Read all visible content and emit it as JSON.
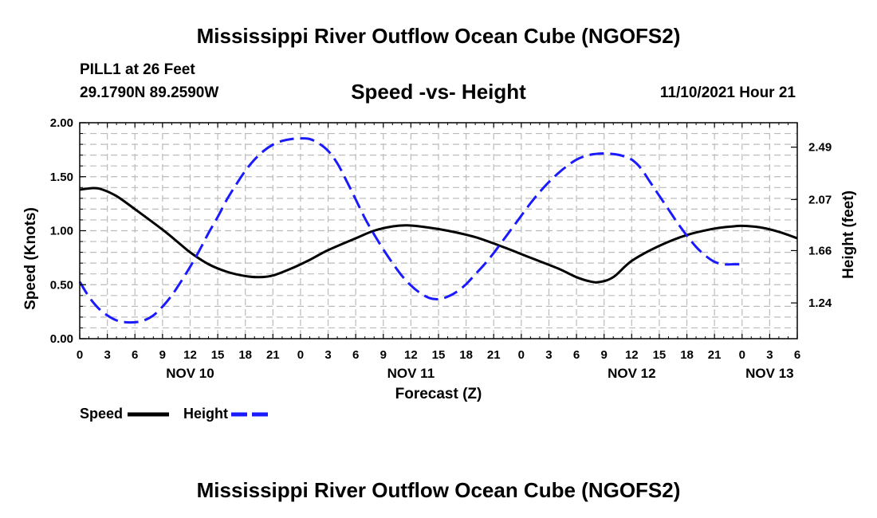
{
  "header": {
    "title": "Mississippi River Outflow Ocean Cube (NGOFS2)",
    "station": "PILL1 at 26 Feet",
    "coords": "29.1790N  89.2590W",
    "datetime": "11/10/2021 Hour 21",
    "footer_title": "Mississippi River Outflow Ocean Cube (NGOFS2)"
  },
  "legend": {
    "speed_label": "Speed",
    "height_label": "Height"
  },
  "colors": {
    "speed": "#000000",
    "height": "#1a1aff",
    "grid": "#bbbbbb"
  },
  "chart_data": {
    "type": "line",
    "title": "Speed -vs- Height",
    "xlabel": "Forecast (Z)",
    "ylabel": "Speed (Knots)",
    "y2label": "Height (feet)",
    "x_range_hours": [
      0,
      78
    ],
    "ylim": [
      0,
      2.0
    ],
    "y2lim": [
      0.953,
      2.686
    ],
    "x_ticks": [
      {
        "h": 0,
        "label": "0"
      },
      {
        "h": 3,
        "label": "3"
      },
      {
        "h": 6,
        "label": "6"
      },
      {
        "h": 9,
        "label": "9"
      },
      {
        "h": 12,
        "label": "12"
      },
      {
        "h": 15,
        "label": "15"
      },
      {
        "h": 18,
        "label": "18"
      },
      {
        "h": 21,
        "label": "21"
      },
      {
        "h": 24,
        "label": "0"
      },
      {
        "h": 27,
        "label": "3"
      },
      {
        "h": 30,
        "label": "6"
      },
      {
        "h": 33,
        "label": "9"
      },
      {
        "h": 36,
        "label": "12"
      },
      {
        "h": 39,
        "label": "15"
      },
      {
        "h": 42,
        "label": "18"
      },
      {
        "h": 45,
        "label": "21"
      },
      {
        "h": 48,
        "label": "0"
      },
      {
        "h": 51,
        "label": "3"
      },
      {
        "h": 54,
        "label": "6"
      },
      {
        "h": 57,
        "label": "9"
      },
      {
        "h": 60,
        "label": "12"
      },
      {
        "h": 63,
        "label": "15"
      },
      {
        "h": 66,
        "label": "18"
      },
      {
        "h": 69,
        "label": "21"
      },
      {
        "h": 72,
        "label": "0"
      },
      {
        "h": 75,
        "label": "3"
      },
      {
        "h": 78,
        "label": "6"
      }
    ],
    "day_labels": [
      {
        "h": 12,
        "label": "NOV 10"
      },
      {
        "h": 36,
        "label": "NOV 11"
      },
      {
        "h": 60,
        "label": "NOV 12"
      },
      {
        "h": 75,
        "label": "NOV 13"
      }
    ],
    "y_ticks": [
      {
        "v": 0.0,
        "label": "0.00"
      },
      {
        "v": 0.5,
        "label": "0.50"
      },
      {
        "v": 1.0,
        "label": "1.00"
      },
      {
        "v": 1.5,
        "label": "1.50"
      },
      {
        "v": 2.0,
        "label": "2.00"
      }
    ],
    "y2_ticks": [
      {
        "v": 1.24,
        "label": "1.24"
      },
      {
        "v": 1.66,
        "label": "1.66"
      },
      {
        "v": 2.07,
        "label": "2.07"
      },
      {
        "v": 2.49,
        "label": "2.49"
      }
    ],
    "series": [
      {
        "name": "Speed",
        "axis": "left",
        "style": "solid",
        "points": [
          [
            0,
            1.38
          ],
          [
            1.5,
            1.395
          ],
          [
            2.5,
            1.38
          ],
          [
            4,
            1.32
          ],
          [
            6,
            1.2
          ],
          [
            9,
            1.01
          ],
          [
            11,
            0.87
          ],
          [
            12,
            0.8
          ],
          [
            14,
            0.69
          ],
          [
            16,
            0.62
          ],
          [
            18,
            0.58
          ],
          [
            19.5,
            0.57
          ],
          [
            21,
            0.585
          ],
          [
            23,
            0.65
          ],
          [
            25,
            0.73
          ],
          [
            27,
            0.82
          ],
          [
            30,
            0.93
          ],
          [
            32,
            1.0
          ],
          [
            34,
            1.04
          ],
          [
            35.5,
            1.05
          ],
          [
            37,
            1.04
          ],
          [
            40,
            1.0
          ],
          [
            43,
            0.94
          ],
          [
            46,
            0.85
          ],
          [
            49,
            0.75
          ],
          [
            52,
            0.65
          ],
          [
            54,
            0.57
          ],
          [
            55.5,
            0.53
          ],
          [
            56.5,
            0.525
          ],
          [
            58,
            0.57
          ],
          [
            60,
            0.72
          ],
          [
            63,
            0.86
          ],
          [
            66,
            0.96
          ],
          [
            69,
            1.02
          ],
          [
            71,
            1.04
          ],
          [
            72,
            1.045
          ],
          [
            74,
            1.03
          ],
          [
            76,
            0.99
          ],
          [
            78,
            0.93
          ]
        ]
      },
      {
        "name": "Height",
        "axis": "right",
        "style": "dashed",
        "points": [
          [
            0,
            1.41
          ],
          [
            1,
            1.29
          ],
          [
            2,
            1.2
          ],
          [
            3,
            1.14
          ],
          [
            4,
            1.1
          ],
          [
            5,
            1.085
          ],
          [
            6,
            1.085
          ],
          [
            7,
            1.1
          ],
          [
            8,
            1.14
          ],
          [
            9,
            1.21
          ],
          [
            10,
            1.3
          ],
          [
            11,
            1.41
          ],
          [
            12,
            1.53
          ],
          [
            13,
            1.66
          ],
          [
            14,
            1.8
          ],
          [
            15,
            1.93
          ],
          [
            16,
            2.07
          ],
          [
            17,
            2.19
          ],
          [
            18,
            2.3
          ],
          [
            19,
            2.39
          ],
          [
            20,
            2.46
          ],
          [
            21,
            2.51
          ],
          [
            22,
            2.54
          ],
          [
            23,
            2.555
          ],
          [
            24,
            2.56
          ],
          [
            25,
            2.555
          ],
          [
            26,
            2.52
          ],
          [
            27,
            2.46
          ],
          [
            28,
            2.36
          ],
          [
            29,
            2.22
          ],
          [
            30,
            2.07
          ],
          [
            31,
            1.92
          ],
          [
            32,
            1.79
          ],
          [
            33,
            1.67
          ],
          [
            34,
            1.56
          ],
          [
            35,
            1.46
          ],
          [
            36,
            1.38
          ],
          [
            37,
            1.32
          ],
          [
            38,
            1.28
          ],
          [
            39,
            1.27
          ],
          [
            40,
            1.29
          ],
          [
            41,
            1.33
          ],
          [
            42,
            1.39
          ],
          [
            43,
            1.47
          ],
          [
            44,
            1.55
          ],
          [
            45,
            1.64
          ],
          [
            46,
            1.74
          ],
          [
            47,
            1.84
          ],
          [
            48,
            1.94
          ],
          [
            49,
            2.04
          ],
          [
            50,
            2.13
          ],
          [
            51,
            2.21
          ],
          [
            52,
            2.28
          ],
          [
            53,
            2.34
          ],
          [
            54,
            2.39
          ],
          [
            55,
            2.42
          ],
          [
            56,
            2.435
          ],
          [
            57,
            2.44
          ],
          [
            58,
            2.435
          ],
          [
            59,
            2.42
          ],
          [
            60,
            2.39
          ],
          [
            61,
            2.32
          ],
          [
            62,
            2.21
          ],
          [
            63,
            2.1
          ],
          [
            64,
            1.99
          ],
          [
            65,
            1.88
          ],
          [
            66,
            1.78
          ],
          [
            67,
            1.69
          ],
          [
            68,
            1.62
          ],
          [
            69,
            1.57
          ],
          [
            70,
            1.55
          ],
          [
            71,
            1.55
          ],
          [
            72,
            1.55
          ]
        ]
      }
    ]
  }
}
